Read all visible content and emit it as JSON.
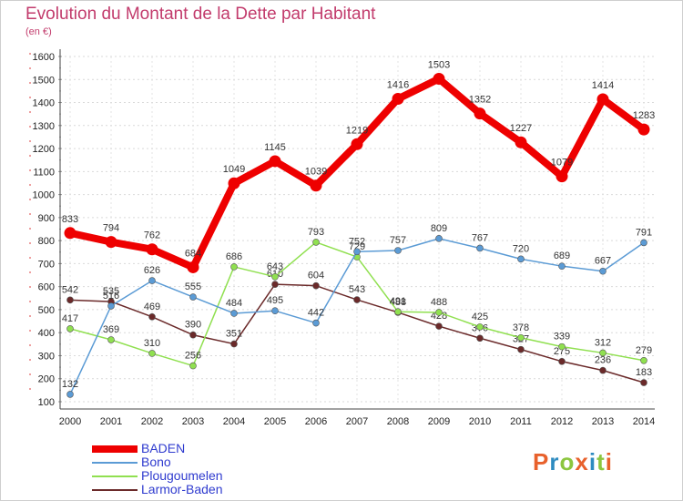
{
  "chart_data": {
    "type": "line",
    "title": "Evolution du Montant de la Dette par Habitant",
    "subtitle": "(en €)",
    "xlabel": "",
    "ylabel": "",
    "ylim": [
      100,
      1600
    ],
    "yticks": [
      100,
      200,
      300,
      400,
      500,
      600,
      700,
      800,
      900,
      1000,
      1100,
      1200,
      1300,
      1400,
      1500,
      1600
    ],
    "grid": true,
    "legend_position": "bottom-left",
    "x": [
      "2000",
      "2001",
      "2002",
      "2003",
      "2004",
      "2005",
      "2006",
      "2007",
      "2008",
      "2009",
      "2010",
      "2011",
      "2012",
      "2013",
      "2014"
    ],
    "series": [
      {
        "name": "BADEN",
        "color": "#ee0000",
        "values": [
          833,
          794,
          762,
          684,
          1049,
          1145,
          1039,
          1219,
          1416,
          1503,
          1352,
          1227,
          1079,
          1414,
          1283
        ]
      },
      {
        "name": "Bono",
        "color": "#5b9bd5",
        "values": [
          132,
          516,
          626,
          555,
          484,
          495,
          442,
          752,
          757,
          809,
          767,
          720,
          689,
          667,
          791
        ]
      },
      {
        "name": "Plougoumelen",
        "color": "#90e050",
        "values": [
          417,
          369,
          310,
          256,
          686,
          643,
          793,
          729,
          491,
          488,
          425,
          378,
          339,
          312,
          279
        ]
      },
      {
        "name": "Larmor-Baden",
        "color": "#6b2a2a",
        "values": [
          542,
          535,
          469,
          390,
          351,
          610,
          604,
          543,
          488,
          428,
          376,
          327,
          275,
          236,
          183
        ]
      }
    ]
  },
  "brand": {
    "letters": [
      "P",
      "r",
      "o",
      "x",
      "i",
      "t",
      "i"
    ],
    "colors": [
      "#e8612c",
      "#2e8bc0",
      "#8cc63f",
      "#e8612c",
      "#2e8bc0",
      "#8cc63f",
      "#e8612c"
    ]
  }
}
